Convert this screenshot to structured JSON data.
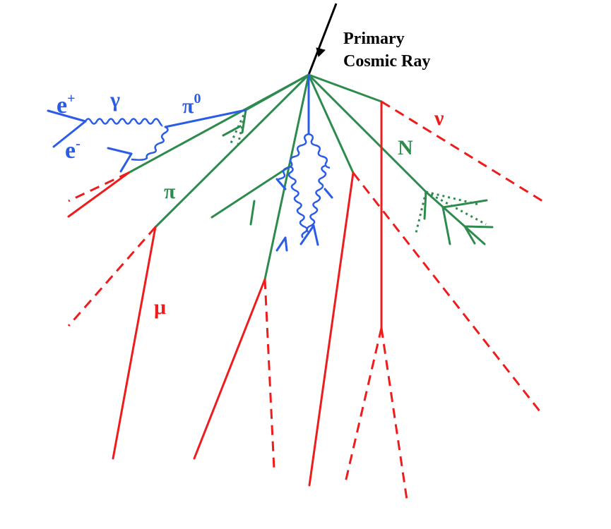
{
  "diagram": {
    "title_line1": "Primary",
    "title_line2": "Cosmic Ray",
    "labels": {
      "e_plus": "e",
      "e_plus_sup": "+",
      "e_minus": "e",
      "e_minus_sup": "-",
      "gamma": "γ",
      "pi0": "π",
      "pi0_sup": "0",
      "pi": "π",
      "mu": "μ",
      "nu": "ν",
      "N": "N"
    },
    "colors": {
      "primary": "#000000",
      "hadron": "#2e8b4e",
      "electromagnetic": "#2b5ce6",
      "muon_neutrino": "#ee1c1c"
    }
  }
}
